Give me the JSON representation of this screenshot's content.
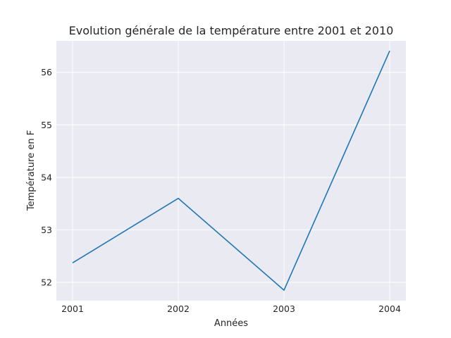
{
  "chart_data": {
    "type": "line",
    "title": "Evolution générale de la température entre 2001 et 2010",
    "xlabel": "Années",
    "ylabel": "Température en F",
    "x": [
      "2001",
      "2002",
      "2003",
      "2004"
    ],
    "series": [
      {
        "values": [
          52.37,
          53.6,
          51.85,
          56.41
        ]
      }
    ],
    "yticks": [
      "52",
      "53",
      "54",
      "55",
      "56"
    ],
    "ylim": [
      51.65,
      56.6
    ],
    "grid": true,
    "colors": {
      "background": "#eaeaf2",
      "grid": "#ffffff",
      "line": "#1f77b4",
      "text": "#262626"
    }
  }
}
